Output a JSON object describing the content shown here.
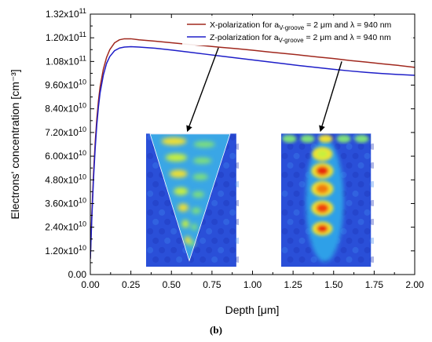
{
  "chart_data": {
    "type": "line",
    "xlabel": "Depth [μm]",
    "ylabel": "Electrons' concentration [cm⁻³]",
    "xlim": [
      0,
      2.0
    ],
    "ylim": [
      0,
      132000000000.0
    ],
    "grid": false,
    "legend_position": "top-right",
    "caption": "(b)",
    "x_ticks": [
      {
        "value": 0.0,
        "label": "0.00"
      },
      {
        "value": 0.25,
        "label": "0.25"
      },
      {
        "value": 0.5,
        "label": "0.50"
      },
      {
        "value": 0.75,
        "label": "0.75"
      },
      {
        "value": 1.0,
        "label": "1.00"
      },
      {
        "value": 1.25,
        "label": "1.25"
      },
      {
        "value": 1.5,
        "label": "1.50"
      },
      {
        "value": 1.75,
        "label": "1.75"
      },
      {
        "value": 2.0,
        "label": "2.00"
      }
    ],
    "y_ticks": [
      {
        "value": 0,
        "label": "0.00"
      },
      {
        "value": 12000000000.0,
        "label": "1.20x10",
        "exp": "10"
      },
      {
        "value": 24000000000.0,
        "label": "2.40x10",
        "exp": "10"
      },
      {
        "value": 36000000000.0,
        "label": "3.60x10",
        "exp": "10"
      },
      {
        "value": 48000000000.0,
        "label": "4.80x10",
        "exp": "10"
      },
      {
        "value": 60000000000.0,
        "label": "6.00x10",
        "exp": "10"
      },
      {
        "value": 72000000000.0,
        "label": "7.20x10",
        "exp": "10"
      },
      {
        "value": 84000000000.0,
        "label": "8.40x10",
        "exp": "10"
      },
      {
        "value": 96000000000.0,
        "label": "9.60x10",
        "exp": "10"
      },
      {
        "value": 108000000000.0,
        "label": "1.08x10",
        "exp": "11"
      },
      {
        "value": 120000000000.0,
        "label": "1.20x10",
        "exp": "11"
      },
      {
        "value": 132000000000.0,
        "label": "1.32x10",
        "exp": "11"
      }
    ],
    "series": [
      {
        "name": "X-polarization for a_V-groove = 2 μm and λ = 940 nm",
        "legend_parts": [
          "X-polarization for a",
          "V-groove",
          " = 2 μm and λ = 940 nm"
        ],
        "color": "#a0281e",
        "x": [
          0.0,
          0.01,
          0.02,
          0.03,
          0.04,
          0.05,
          0.06,
          0.08,
          0.1,
          0.12,
          0.15,
          0.18,
          0.21,
          0.25,
          0.3,
          0.4,
          0.5,
          0.6,
          0.7,
          0.8,
          0.9,
          1.0,
          1.1,
          1.2,
          1.3,
          1.4,
          1.5,
          1.6,
          1.7,
          1.8,
          1.9,
          2.0
        ],
        "y": [
          8000000000.0,
          32000000000.0,
          52000000000.0,
          67000000000.0,
          79000000000.0,
          88000000000.0,
          95000000000.0,
          104000000000.0,
          110000000000.0,
          114000000000.0,
          117500000000.0,
          119000000000.0,
          119500000000.0,
          119500000000.0,
          119000000000.0,
          118300000000.0,
          117500000000.0,
          116700000000.0,
          116000000000.0,
          115200000000.0,
          114500000000.0,
          113700000000.0,
          112800000000.0,
          112000000000.0,
          111200000000.0,
          110300000000.0,
          109500000000.0,
          108500000000.0,
          107700000000.0,
          106800000000.0,
          106000000000.0,
          105000000000.0
        ]
      },
      {
        "name": "Z-polarization for a_V-groove = 2 μm and λ = 940 nm",
        "legend_parts": [
          "Z-polarization for a",
          "V-groove",
          " = 2 μm and λ = 940 nm"
        ],
        "color": "#1e1ec8",
        "x": [
          0.0,
          0.01,
          0.02,
          0.03,
          0.04,
          0.05,
          0.06,
          0.08,
          0.1,
          0.12,
          0.15,
          0.18,
          0.21,
          0.25,
          0.3,
          0.4,
          0.5,
          0.6,
          0.7,
          0.8,
          0.9,
          1.0,
          1.1,
          1.2,
          1.3,
          1.4,
          1.5,
          1.6,
          1.7,
          1.8,
          1.9,
          2.0
        ],
        "y": [
          8000000000.0,
          30000000000.0,
          49000000000.0,
          64000000000.0,
          76000000000.0,
          85000000000.0,
          92000000000.0,
          101000000000.0,
          107000000000.0,
          110500000000.0,
          113500000000.0,
          114800000000.0,
          115300000000.0,
          115500000000.0,
          115300000000.0,
          114700000000.0,
          113800000000.0,
          112800000000.0,
          111800000000.0,
          110800000000.0,
          109800000000.0,
          108800000000.0,
          107800000000.0,
          106800000000.0,
          105800000000.0,
          104900000000.0,
          104000000000.0,
          103200000000.0,
          102500000000.0,
          101900000000.0,
          101400000000.0,
          101000000000.0
        ]
      }
    ],
    "annotations": [
      {
        "type": "arrow",
        "from": [
          0.79,
          115000000000.0
        ],
        "to": [
          0.6,
          73000000000.0
        ],
        "color": "#000000"
      },
      {
        "type": "arrow",
        "from": [
          1.55,
          108000000000.0
        ],
        "to": [
          1.42,
          73000000000.0
        ],
        "color": "#000000"
      }
    ],
    "insets": [
      {
        "name": "x-polarization-field-map",
        "x_range": [
          0.33,
          0.9
        ],
        "y_range": [
          3000000000.0,
          72000000000.0
        ],
        "pattern": "v-groove"
      },
      {
        "name": "z-polarization-field-map",
        "x_range": [
          1.16,
          1.73
        ],
        "y_range": [
          3000000000.0,
          72000000000.0
        ],
        "pattern": "spots"
      }
    ]
  }
}
